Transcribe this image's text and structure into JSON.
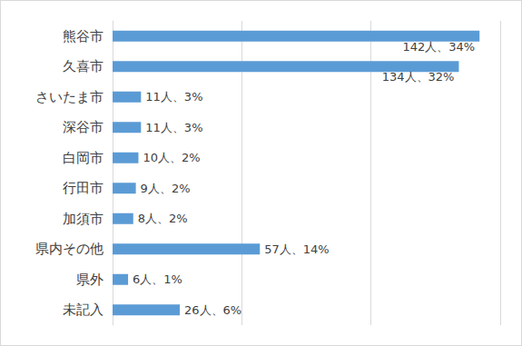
{
  "chart_data": {
    "type": "bar",
    "orientation": "horizontal",
    "categories": [
      "熊谷市",
      "久喜市",
      "さいたま市",
      "深谷市",
      "白岡市",
      "行田市",
      "加須市",
      "県内その他",
      "県外",
      "未記入"
    ],
    "values": [
      142,
      134,
      11,
      11,
      10,
      9,
      8,
      57,
      6,
      26
    ],
    "value_labels": [
      "142人、34%",
      "134人、32%",
      "11人、3%",
      "11人、3%",
      "10人、2%",
      "9人、2%",
      "8人、2%",
      "57人、14%",
      "6人、1%",
      "26人、6%"
    ],
    "color": "#5b9bd5",
    "xlim": [
      0,
      150
    ],
    "xticks": [
      0,
      50,
      100,
      150
    ],
    "grid": true,
    "data_labels": true,
    "tick_labels": "y"
  }
}
